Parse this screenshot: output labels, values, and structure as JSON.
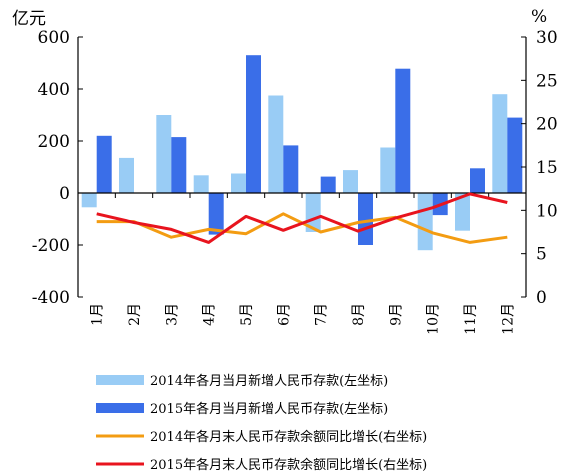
{
  "chart_data": {
    "type": "bar",
    "left_axis": {
      "unit": "亿元",
      "ylim": [
        -400,
        600
      ],
      "ticks": [
        600,
        400,
        200,
        0,
        -200,
        -400
      ],
      "tick_labels": [
        "600",
        "400",
        "200",
        "0",
        "-200",
        "-400"
      ]
    },
    "right_axis": {
      "unit": "%",
      "ylim": [
        0,
        30
      ],
      "ticks": [
        30,
        25,
        20,
        15,
        10,
        5,
        0
      ],
      "tick_labels": [
        "30",
        "25",
        "20",
        "15",
        "10",
        "5",
        "0"
      ]
    },
    "categories": [
      "1月",
      "2月",
      "3月",
      "4月",
      "5月",
      "6月",
      "7月",
      "8月",
      "9月",
      "10月",
      "11月",
      "12月"
    ],
    "grid": false,
    "legend_position": "bottom",
    "series": [
      {
        "name": "2014年各月当月新增人民币存款(左坐标)",
        "type": "bar",
        "axis": "left",
        "color": "#99ccf5",
        "values": [
          -55,
          135,
          300,
          68,
          75,
          375,
          -150,
          88,
          175,
          -220,
          -145,
          380
        ]
      },
      {
        "name": "2015年各月当月新增人民币存款(左坐标)",
        "type": "bar",
        "axis": "left",
        "color": "#3a6ee8",
        "values": [
          220,
          0,
          215,
          -160,
          530,
          183,
          63,
          -200,
          478,
          -85,
          95,
          290
        ]
      },
      {
        "name": "2014年各月末人民币存款余额同比增长(右坐标)",
        "type": "line",
        "axis": "right",
        "color": "#f39c12",
        "values": [
          8.7,
          8.7,
          6.9,
          7.8,
          7.3,
          9.6,
          7.5,
          8.6,
          9.2,
          7.4,
          6.3,
          6.9
        ]
      },
      {
        "name": "2015年各月末人民币存款余额同比增长(右坐标)",
        "type": "line",
        "axis": "right",
        "color": "#e8141e",
        "values": [
          9.6,
          8.6,
          7.8,
          6.3,
          9.3,
          7.7,
          9.3,
          7.6,
          9.1,
          10.3,
          11.9,
          10.9
        ]
      }
    ]
  }
}
